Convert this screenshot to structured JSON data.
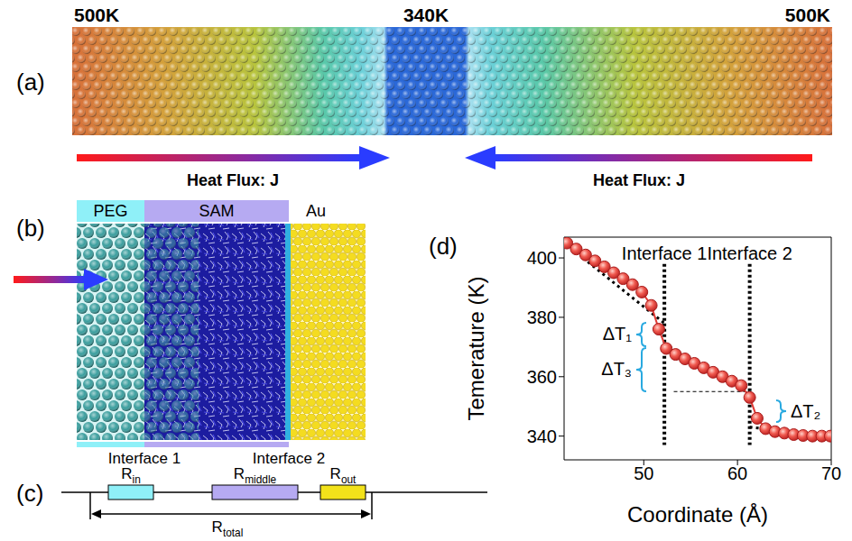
{
  "panel_a": {
    "label": "(a)",
    "temperature_labels": [
      "500K",
      "340K",
      "500K"
    ],
    "flux_labels": [
      "Heat Flux: J",
      "Heat Flux: J"
    ]
  },
  "panel_b": {
    "label": "(b)",
    "regions": [
      "PEG",
      "SAM",
      "Au"
    ],
    "interfaces": [
      "Interface 1",
      "Interface 2"
    ]
  },
  "panel_c": {
    "label": "(c)",
    "resistors": [
      {
        "symbol": "R",
        "subscript": "in"
      },
      {
        "symbol": "R",
        "subscript": "middle"
      },
      {
        "symbol": "R",
        "subscript": "out"
      }
    ],
    "total": {
      "symbol": "R",
      "subscript": "total"
    }
  },
  "chart_data": {
    "type": "line",
    "panel_label": "(d)",
    "x_label": "Coordinate (Å)",
    "y_label": "Temerature (K)",
    "xlim": [
      41.5,
      70
    ],
    "xticks": [
      50,
      60,
      70
    ],
    "ylim": [
      332,
      407
    ],
    "yticks": [
      340,
      360,
      380,
      400
    ],
    "x": [
      41.8,
      42.8,
      43.8,
      44.8,
      45.8,
      46.8,
      47.8,
      48.8,
      49.8,
      50.8,
      51.6,
      52.4,
      53.4,
      54.4,
      55.4,
      56.4,
      57.4,
      58.4,
      59.4,
      60.4,
      61.3,
      62.1,
      63.0,
      64.0,
      65.0,
      66.0,
      67.0,
      68.0,
      69.0,
      69.9
    ],
    "values": [
      405,
      403,
      401,
      399,
      397,
      395,
      393,
      391,
      388.5,
      384,
      376,
      369.5,
      367.5,
      366,
      364.5,
      363,
      361.5,
      360,
      358.5,
      357,
      353,
      346,
      342.5,
      341.5,
      341,
      340.5,
      340.2,
      340,
      340,
      340
    ],
    "color": "#e03a35",
    "marker": "circle",
    "fit_lines": {
      "line_style": "dotted",
      "color": "#000000",
      "segments": [
        {
          "x": [
            43.5,
            52.2
          ],
          "y": [
            400,
            378
          ]
        },
        {
          "x": [
            52.2,
            61.3
          ],
          "y": [
            370,
            355.5
          ]
        },
        {
          "x": [
            61.3,
            70
          ],
          "y": [
            343,
            340
          ]
        }
      ]
    },
    "guide": {
      "line_style": "dashed",
      "x": [
        53.2,
        61.3
      ],
      "y": [
        355,
        355
      ]
    },
    "interfaces": [
      {
        "label": "Interface 1",
        "x": 52.2,
        "y_range": [
          337,
          398
        ]
      },
      {
        "label": "Interface 2",
        "x": 61.3,
        "y_range": [
          337,
          398
        ]
      }
    ],
    "annotations": [
      "ΔT₁",
      "ΔT₂",
      "ΔT₃"
    ]
  }
}
